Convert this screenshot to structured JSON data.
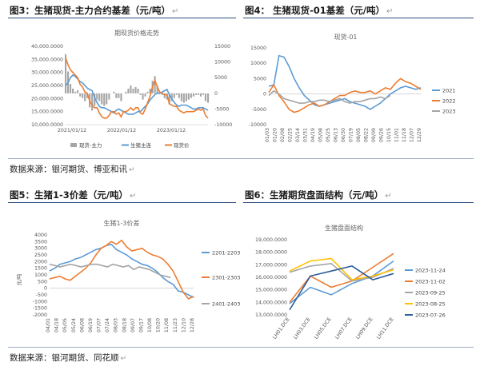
{
  "figure_titles": {
    "fig3": "图3：生猪现货-主力合约基差（元/吨）",
    "fig4": "图4：  生猪现货-01基差（元/吨）",
    "fig5": "图5：生猪1-3价差（元/吨）",
    "fig6": "图6：生猪期货盘面结构（元/吨）"
  },
  "sources": {
    "row1": "数据来源：银河期货、博亚和讯",
    "row2": "数据来源：银河期货、同花顺"
  },
  "chart_data": [
    {
      "id": "fig3",
      "type": "line",
      "title": "期现货价格走势",
      "x_ticks": [
        "2021/01/12",
        "2022/01/12",
        "2023/01/12"
      ],
      "y_left_ticks": [
        "10,000.0000",
        "15,000.0000",
        "20,000.0000",
        "25,000.0000",
        "30,000.0000",
        "35,000.0000",
        "40,000.0000"
      ],
      "y_left_lim": [
        10000,
        40000
      ],
      "y_right_ticks": [
        "-10000",
        "-5000",
        "0",
        "5000",
        "10000",
        "15000"
      ],
      "y_right_lim": [
        -10000,
        15000
      ],
      "series": [
        {
          "name": "现货-主力",
          "kind": "bar",
          "axis": "right",
          "color": "#a5a5a5",
          "values": [
            12500,
            7000,
            3000,
            1500,
            500,
            1000,
            -1000,
            -1500,
            -2500,
            -1500,
            -4500,
            -5500,
            -4000,
            -2000,
            -2500,
            -3500,
            -4000,
            -3500,
            -2000,
            0,
            500,
            -1500,
            -1500,
            -2500,
            0,
            500,
            1500,
            2500,
            1500,
            2000,
            1500,
            -500,
            -2000,
            -1000,
            500,
            1500,
            4000,
            5500,
            2500,
            500,
            -500,
            -1500,
            -2000,
            -3500,
            -2500,
            -1500,
            -500,
            -1500,
            -2500,
            -3000,
            -2500,
            -2000,
            -1500,
            -1000,
            -500,
            -500,
            -1000,
            -500,
            -2500,
            -3000
          ]
        },
        {
          "name": "生猪主连",
          "kind": "line",
          "axis": "left",
          "color": "#5b9bd5",
          "values": [
            25000,
            26000,
            28000,
            29000,
            28500,
            27500,
            26500,
            26000,
            25000,
            24000,
            23500,
            23000,
            20500,
            18500,
            17000,
            16500,
            16500,
            16000,
            15500,
            15000,
            14500,
            15500,
            16000,
            15500,
            15000,
            14500,
            14000,
            14000,
            14000,
            14500,
            15000,
            15000,
            16000,
            17000,
            18000,
            19500,
            20500,
            21500,
            22000,
            22000,
            22500,
            23000,
            23500,
            21500,
            20000,
            18500,
            17500,
            17000,
            17500,
            17500,
            17500,
            17000,
            16500,
            16000,
            16000,
            16500,
            16500,
            16500,
            16000,
            15500
          ]
        },
        {
          "name": "现货价",
          "kind": "line",
          "axis": "left",
          "color": "#ed7d31",
          "values": [
            35500,
            33000,
            31000,
            30000,
            29000,
            28000,
            25500,
            24500,
            22500,
            22000,
            19000,
            17500,
            16500,
            16500,
            14500,
            13000,
            12500,
            12500,
            13500,
            15000,
            15000,
            14000,
            14500,
            13000,
            15000,
            15000,
            15500,
            16500,
            15500,
            16500,
            16500,
            14500,
            14000,
            16000,
            18500,
            21000,
            24500,
            27000,
            24500,
            22500,
            22000,
            21500,
            21500,
            18000,
            17500,
            17000,
            17000,
            15500,
            15000,
            14500,
            15000,
            15000,
            15000,
            15000,
            15500,
            16000,
            15500,
            16000,
            13500,
            12500
          ]
        }
      ]
    },
    {
      "id": "fig4",
      "type": "line",
      "title": "现货-01",
      "x_ticks": [
        "01/03",
        "01/20",
        "02/08",
        "02/25",
        "03/14",
        "03/31",
        "04/19",
        "05/08",
        "05/25",
        "06/13",
        "06/30",
        "07/19",
        "08/05",
        "08/22",
        "09/09",
        "09/26",
        "10/15",
        "11/01",
        "11/18",
        "12/07",
        "12/29"
      ],
      "y_ticks": [
        "-10000",
        "-5000",
        "0",
        "5000",
        "10000",
        "15000"
      ],
      "ylim": [
        -10000,
        15000
      ],
      "series": [
        {
          "name": "2021",
          "color": "#5b9bd5",
          "values": [
            2500,
            3000,
            12500,
            12000,
            9000,
            5000,
            2000,
            -500,
            -2000,
            -3500,
            -4000,
            -3500,
            -3000,
            -2500,
            -2000,
            -1500,
            -2500,
            -3000,
            -3500,
            -4000,
            -5000,
            -4000,
            -3000,
            -1500,
            0,
            1000,
            2000,
            2500,
            2000,
            1500,
            2000
          ]
        },
        {
          "name": "2022",
          "color": "#ed7d31",
          "values": [
            500,
            3000,
            -500,
            -2500,
            -5000,
            -6000,
            -5500,
            -4500,
            -3500,
            -3000,
            -4000,
            -3500,
            -2500,
            -1500,
            -500,
            -500,
            500,
            1000,
            500,
            500,
            1000,
            0,
            1000,
            2000,
            1500,
            3500,
            5000,
            4000,
            3500,
            2500,
            1500
          ]
        },
        {
          "name": "2023",
          "color": "#a5a5a5",
          "values": [
            -500,
            1000,
            0,
            -1500,
            -2000,
            -2500,
            -3000,
            -3000,
            -2500,
            -2500,
            -2000,
            -2000,
            -2500,
            -2000,
            -1500,
            -2500,
            -3000,
            -2500,
            -2500,
            -2000,
            -1500,
            -1500,
            -1000,
            -1500,
            -500
          ]
        }
      ]
    },
    {
      "id": "fig5",
      "type": "line",
      "title": "生猪1-3价差",
      "ylabel": "元/吨",
      "x_ticks": [
        "04/01",
        "04/18",
        "05/05",
        "05/24",
        "06/08",
        "06/19",
        "07/07",
        "07/24",
        "08/03",
        "08/18",
        "09/07",
        "09/17",
        "10/08",
        "10/20",
        "11/08",
        "11/23",
        "12/10",
        "12/28"
      ],
      "y_ticks": [
        "-2000",
        "-1500",
        "-1000",
        "-500",
        "0",
        "500",
        "1000",
        "1500",
        "2000",
        "2500",
        "3000",
        "3500",
        "4000"
      ],
      "ylim": [
        -2000,
        4000
      ],
      "series": [
        {
          "name": "2201-2203",
          "color": "#5b9bd5",
          "values": [
            1300,
            1500,
            1800,
            1900,
            2000,
            2200,
            2300,
            2500,
            2700,
            2900,
            3000,
            3200,
            3300,
            2900,
            2700,
            2500,
            2200,
            2000,
            1800,
            1700,
            1500,
            1200,
            800,
            500,
            300,
            -200,
            -300,
            -500,
            -700
          ]
        },
        {
          "name": "2301-2303",
          "color": "#ed7d31",
          "values": [
            700,
            800,
            900,
            700,
            600,
            900,
            1200,
            1500,
            1900,
            2500,
            3000,
            3200,
            3500,
            3300,
            3600,
            3100,
            2800,
            2900,
            3000,
            2700,
            2500,
            2400,
            2200,
            1800,
            1300,
            500,
            -300,
            -800,
            -600
          ]
        },
        {
          "name": "2401-2403",
          "color": "#a5a5a5",
          "values": [
            1800,
            1700,
            1600,
            1700,
            1800,
            1700,
            1600,
            1700,
            1800,
            1800,
            1700,
            1600,
            1800,
            1700,
            1600,
            1700,
            1400,
            1600,
            1500,
            1400,
            1200,
            1000,
            900,
            800
          ]
        }
      ]
    },
    {
      "id": "fig6",
      "type": "line",
      "title": "生猪盘面结构",
      "categories": [
        "LH01.DCE",
        "LH03.DCE",
        "LH05.DCE",
        "LH07.DCE",
        "LH09.DCE",
        "LH11.DCE"
      ],
      "y_ticks": [
        "13,000.0000",
        "14,000.0000",
        "15,000.0000",
        "16,000.0000",
        "17,000.0000",
        "18,000.0000",
        "19,000.0000"
      ],
      "ylim": [
        13000,
        19000
      ],
      "series": [
        {
          "name": "2023-11-24",
          "color": "#5b9bd5",
          "values": [
            13900,
            15200,
            14600,
            15500,
            16100,
            17300
          ]
        },
        {
          "name": "2023-11-02",
          "color": "#ed7d31",
          "values": [
            14000,
            16100,
            15200,
            15700,
            16800,
            17900
          ]
        },
        {
          "name": "2023-09-25",
          "color": "#a5a5a5",
          "values": [
            16400,
            16900,
            17100,
            15700,
            16000,
            16700
          ]
        },
        {
          "name": "2023-08-25",
          "color": "#ffc000",
          "values": [
            16500,
            17300,
            17500,
            15800,
            16100,
            16600
          ]
        },
        {
          "name": "2023-07-26",
          "color": "#2e5e9b",
          "values": [
            13400,
            16100,
            16500,
            16900,
            15800,
            16300
          ]
        }
      ]
    }
  ]
}
